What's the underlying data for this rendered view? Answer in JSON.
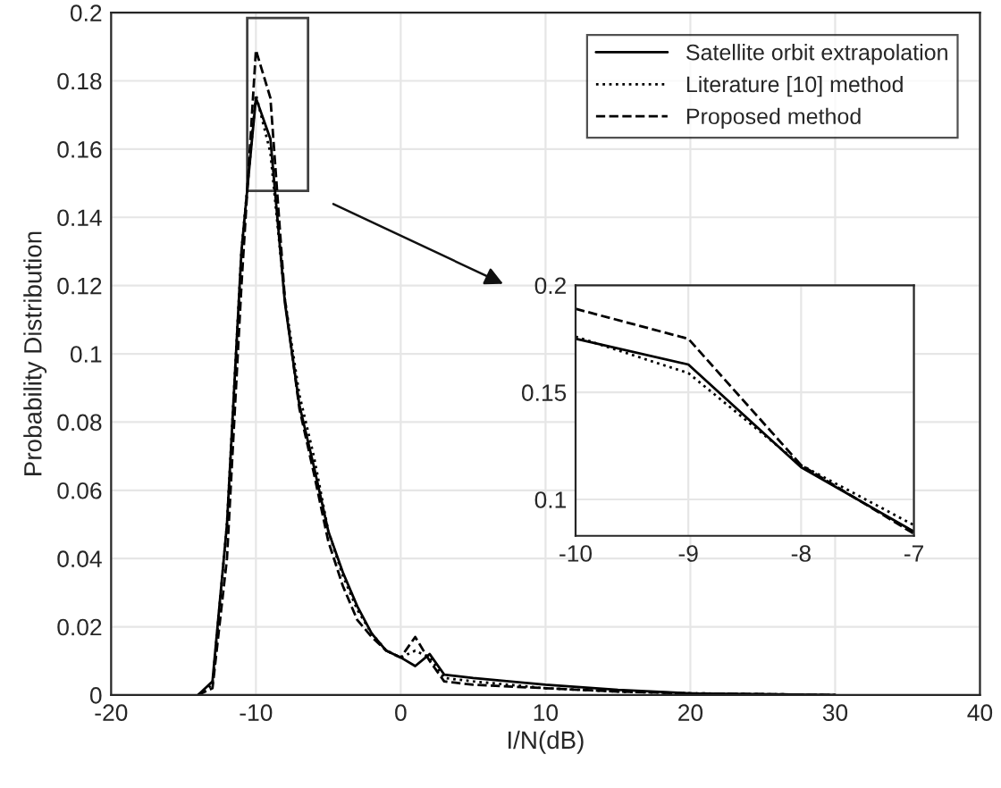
{
  "chart_data": [
    {
      "type": "line",
      "xlabel": "I/N(dB)",
      "ylabel": "Probability Distribution",
      "xlim": [
        -20,
        40
      ],
      "xticks": [
        -20,
        -10,
        0,
        10,
        20,
        30,
        40
      ],
      "ylim": [
        0,
        0.2
      ],
      "yticks": [
        0,
        0.02,
        0.04,
        0.06,
        0.08,
        0.1,
        0.12,
        0.14,
        0.16,
        0.18,
        0.2
      ],
      "grid": true,
      "legend": "top right",
      "x": [
        -14,
        -13,
        -12,
        -11,
        -10,
        -9,
        -8,
        -7,
        -6,
        -5,
        -4,
        -3,
        -2,
        -1,
        0,
        1,
        2,
        3,
        5,
        10,
        15,
        20,
        30
      ],
      "series": [
        {
          "name": "Satellite orbit extrapolation",
          "color": "#000000",
          "line_style": "solid",
          "values": [
            0,
            0.004,
            0.05,
            0.13,
            0.175,
            0.163,
            0.115,
            0.085,
            0.067,
            0.048,
            0.036,
            0.026,
            0.018,
            0.013,
            0.011,
            0.0085,
            0.012,
            0.006,
            0.005,
            0.003,
            0.0015,
            0.0005,
            0
          ]
        },
        {
          "name": "Literature [10] method",
          "color": "#000000",
          "line_style": "dotted",
          "values": [
            0,
            0.003,
            0.05,
            0.13,
            0.176,
            0.159,
            0.116,
            0.088,
            0.07,
            0.048,
            0.035,
            0.025,
            0.018,
            0.013,
            0.011,
            0.013,
            0.011,
            0.005,
            0.004,
            0.002,
            0.001,
            0.0005,
            0
          ]
        },
        {
          "name": "Proposed method",
          "color": "#000000",
          "line_style": "dashed",
          "values": [
            0,
            0.002,
            0.04,
            0.12,
            0.189,
            0.175,
            0.116,
            0.084,
            0.065,
            0.045,
            0.032,
            0.022,
            0.017,
            0.013,
            0.011,
            0.017,
            0.01,
            0.004,
            0.003,
            0.002,
            0.001,
            0.0005,
            0
          ]
        }
      ]
    },
    {
      "type": "line",
      "xlim": [
        -10,
        -7
      ],
      "xticks": [
        -10,
        -9,
        -8,
        -7
      ],
      "ylim": [
        0.083,
        0.2
      ],
      "yticks": [
        0.1,
        0.15,
        0.2
      ],
      "grid": true,
      "x": [
        -10,
        -9,
        -8,
        -7
      ],
      "series": [
        {
          "color": "#000000",
          "line_style": "solid",
          "values": [
            0.175,
            0.163,
            0.115,
            0.085
          ]
        },
        {
          "color": "#000000",
          "line_style": "dotted",
          "values": [
            0.176,
            0.159,
            0.116,
            0.088
          ]
        },
        {
          "color": "#000000",
          "line_style": "dashed",
          "values": [
            0.189,
            0.175,
            0.116,
            0.084
          ]
        }
      ]
    }
  ]
}
